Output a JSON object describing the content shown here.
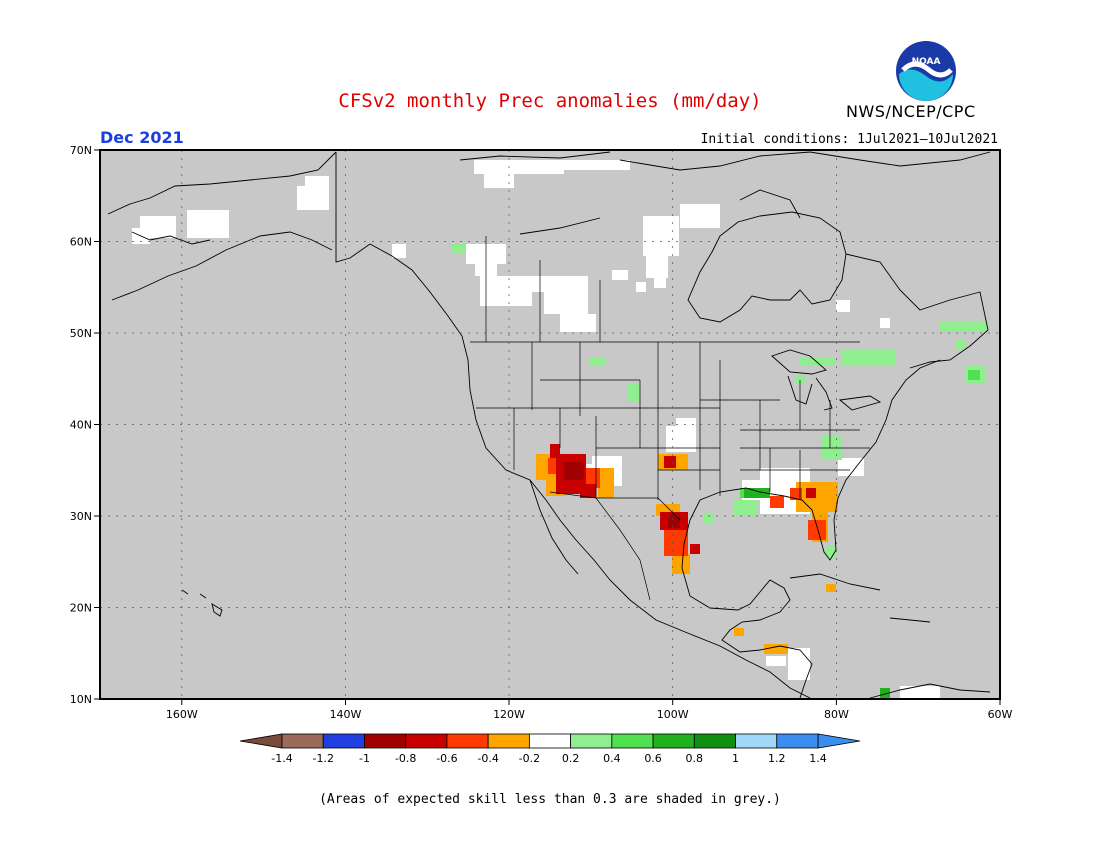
{
  "title": "CFSv2 monthly Prec anomalies (mm/day)",
  "agency": "NWS/NCEP/CPC",
  "target_month": "Dec 2021",
  "initial_conditions": "Initial conditions: 1Jul2021—10Jul2021",
  "footnote": "(Areas of expected skill less than 0.3 are shaded in grey.)",
  "logo_text": "NOAA",
  "colors": {
    "grey_skill_mask": "#c8c8c8",
    "title": "#e00000",
    "month_label": "#1a3fe0"
  },
  "map": {
    "lat_labels": [
      "70N",
      "60N",
      "50N",
      "40N",
      "30N",
      "20N",
      "10N"
    ],
    "lon_labels": [
      "160W",
      "140W",
      "120W",
      "100W",
      "80W",
      "60W"
    ],
    "lat_range": [
      10,
      70
    ],
    "lon_range": [
      -170,
      -60
    ]
  },
  "colorbar": {
    "bins": [
      "#7a4a3a",
      "#1f3fe0",
      "#a00000",
      "#c80000",
      "#ff3a00",
      "#ffa500",
      "#ffffff",
      "#90ee90",
      "#50e050",
      "#20b020",
      "#109010",
      "#a0d8f8",
      "#3a8ef0",
      "#1a6adf"
    ],
    "bin_colors_inner": [
      "#9a6a5a",
      "#1f3fe0",
      "#a00000",
      "#c80000",
      "#ff3a00",
      "#ffa500",
      "#ffffff",
      "#90ee90",
      "#50e050",
      "#20b020",
      "#109010",
      "#a0d8f8",
      "#3a8ef0"
    ],
    "labels": [
      "-1.4",
      "-1.2",
      "-1",
      "-0.8",
      "-0.6",
      "-0.4",
      "-0.2",
      "0.2",
      "0.4",
      "0.6",
      "0.8",
      "1",
      "1.2",
      "1.4"
    ]
  }
}
